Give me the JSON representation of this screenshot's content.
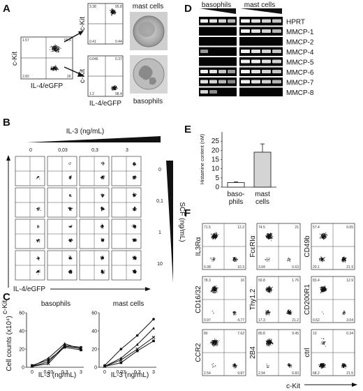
{
  "panels": {
    "A": {
      "letter": "A",
      "main_plot": {
        "y_label": "c-Kit",
        "x_label": "IL-4/eGFP",
        "q": [
          "1.57",
          "69.6",
          "2.82",
          "26"
        ]
      },
      "mast_plot": {
        "y_label": "c-Kit",
        "q": [
          "3.38",
          "95.8",
          "0.41",
          "0.44"
        ]
      },
      "baso_plot": {
        "y_label": "c-Kit",
        "x_label": "IL-4/eGFP",
        "q": [
          "0.046",
          "0.37",
          "1.2",
          "98.4"
        ]
      },
      "mast_label": "mast cells",
      "baso_label": "basophils"
    },
    "B": {
      "letter": "B",
      "il3_title": "IL-3 (ng/mL)",
      "il3_values": [
        "0",
        "0,03",
        "0,3",
        "3"
      ],
      "scf_title": "SCF (ng/mL)",
      "scf_values": [
        "0",
        "0,1",
        "1",
        "10"
      ],
      "y_label": "c-Kit",
      "x_label": "IL-4/eGFP"
    },
    "C": {
      "letter": "C",
      "y_label": "Cell counts (x10⁴)",
      "x_label": "IL-3 (ng/mL)",
      "baso_title": "basophils",
      "mast_title": "mast cells",
      "x_ticks": [
        "0",
        "0,03",
        "0,3",
        "3"
      ],
      "y_ticks": [
        "0",
        "20",
        "40",
        "60"
      ]
    },
    "D": {
      "letter": "D",
      "baso_header": "basophils",
      "mast_header": "mast cells",
      "genes": [
        "HPRT",
        "MMCP-1",
        "MMCP-2",
        "MMCP-4",
        "MMCP-5",
        "MMCP-6",
        "MMCP-7",
        "MMCP-8"
      ]
    },
    "E": {
      "letter": "E",
      "y_label": "Histamine content (nM)",
      "bar1": "baso-",
      "bar1b": "phils",
      "bar2": "mast",
      "bar2b": "cells",
      "y_ticks": [
        "0",
        "5",
        "10",
        "15",
        "20",
        "25"
      ]
    },
    "F": {
      "letter": "F",
      "x_label": "c-Kit",
      "plots": [
        {
          "label": "IL3Rα",
          "q": [
            "71.5",
            "12.2",
            "5.98",
            "10.3"
          ]
        },
        {
          "label": "FcεRIα",
          "q": [
            "74.5",
            "21",
            "3.94",
            "0.63"
          ]
        },
        {
          "label": "CD49b",
          "q": [
            "57.4",
            "0.65",
            "20.1",
            "21.9"
          ]
        },
        {
          "label": "CD16/32",
          "q": [
            "78.3",
            "16",
            "0.97",
            "4.77"
          ]
        },
        {
          "label": "Thy1.2",
          "q": [
            "59.8",
            "1.76",
            "17.3",
            "21.2"
          ]
        },
        {
          "label": "CD200R1",
          "q": [
            "83.4",
            "12.9",
            "0.62",
            "3.04"
          ]
        },
        {
          "label": "CCR2",
          "q": [
            "80",
            "7.62",
            "2.54",
            "9.87"
          ]
        },
        {
          "label": "2B4",
          "q": [
            "80.8",
            "9.45",
            "2.94",
            "6.83"
          ]
        },
        {
          "label": "ctrl",
          "q": [
            "10",
            "0.34",
            "68.2",
            "21.5"
          ]
        }
      ]
    }
  },
  "chart_data": [
    {
      "type": "line",
      "title": "basophils",
      "xlabel": "IL-3 (ng/mL)",
      "ylabel": "Cell counts (x10⁴)",
      "categories": [
        "0",
        "0,03",
        "0,3",
        "3"
      ],
      "ylim": [
        0,
        60
      ],
      "series": [
        {
          "values": [
            1,
            6,
            24,
            22
          ]
        },
        {
          "values": [
            1,
            10,
            26,
            20
          ]
        },
        {
          "values": [
            2,
            8,
            22,
            19
          ]
        },
        {
          "values": [
            1,
            4,
            23,
            21
          ]
        }
      ]
    },
    {
      "type": "line",
      "title": "mast cells",
      "xlabel": "IL-3 (ng/mL)",
      "ylabel": "Cell counts (x10⁴)",
      "categories": [
        "0",
        "0,03",
        "0,3",
        "3"
      ],
      "ylim": [
        0,
        60
      ],
      "series": [
        {
          "values": [
            2,
            20,
            35,
            53
          ]
        },
        {
          "values": [
            1,
            10,
            25,
            43
          ]
        },
        {
          "values": [
            1,
            5,
            18,
            29
          ]
        },
        {
          "values": [
            1,
            8,
            20,
            33
          ]
        }
      ]
    },
    {
      "type": "bar",
      "categories": [
        "baso-phils",
        "mast cells"
      ],
      "values": [
        2.5,
        19
      ],
      "errors": [
        0.4,
        4.5
      ],
      "ylabel": "Histamine content (nM)",
      "ylim": [
        0,
        30
      ]
    }
  ]
}
